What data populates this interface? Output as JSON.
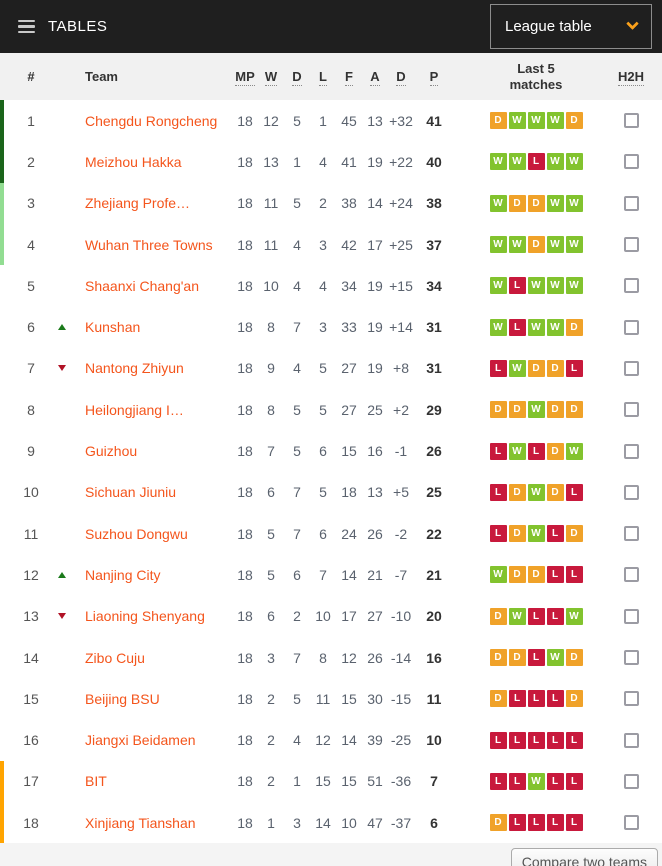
{
  "header": {
    "title": "TABLES",
    "dropdown_label": "League table"
  },
  "columns": {
    "rank": "#",
    "team": "Team",
    "mp": "MP",
    "w": "W",
    "d": "D",
    "l": "L",
    "f": "F",
    "a": "A",
    "diff": "D",
    "p": "P",
    "last5_line1": "Last 5",
    "last5_line2": "matches",
    "h2h": "H2H"
  },
  "footer": {
    "compare_label": "Compare two teams"
  },
  "colors": {
    "accent_orange": "#f4551c",
    "topbar_bg": "#1f1f1f",
    "chevron": "#f9a01b",
    "badge_win": "#82c32e",
    "badge_draw": "#f0a229",
    "badge_loss": "#c8193c",
    "zone_promotion": "#1b651b",
    "zone_promotion_playoff": "#92dd92",
    "zone_relegation": "#ffa400"
  },
  "rows": [
    {
      "rank": "1",
      "movement": "",
      "team": "Chengdu Rongcheng",
      "mp": "18",
      "w": "12",
      "d": "5",
      "l": "1",
      "f": "45",
      "a": "13",
      "diff": "+32",
      "p": "41",
      "last5": [
        "D",
        "W",
        "W",
        "W",
        "D"
      ],
      "zone": "promo-dark"
    },
    {
      "rank": "2",
      "movement": "",
      "team": "Meizhou Hakka",
      "mp": "18",
      "w": "13",
      "d": "1",
      "l": "4",
      "f": "41",
      "a": "19",
      "diff": "+22",
      "p": "40",
      "last5": [
        "W",
        "W",
        "L",
        "W",
        "W"
      ],
      "zone": "promo-dark"
    },
    {
      "rank": "3",
      "movement": "",
      "team": "Zhejiang Profe…",
      "mp": "18",
      "w": "11",
      "d": "5",
      "l": "2",
      "f": "38",
      "a": "14",
      "diff": "+24",
      "p": "38",
      "last5": [
        "W",
        "D",
        "D",
        "W",
        "W"
      ],
      "zone": "promo-light"
    },
    {
      "rank": "4",
      "movement": "",
      "team": "Wuhan Three Towns",
      "mp": "18",
      "w": "11",
      "d": "4",
      "l": "3",
      "f": "42",
      "a": "17",
      "diff": "+25",
      "p": "37",
      "last5": [
        "W",
        "W",
        "D",
        "W",
        "W"
      ],
      "zone": "promo-light"
    },
    {
      "rank": "5",
      "movement": "",
      "team": "Shaanxi Chang'an",
      "mp": "18",
      "w": "10",
      "d": "4",
      "l": "4",
      "f": "34",
      "a": "19",
      "diff": "+15",
      "p": "34",
      "last5": [
        "W",
        "L",
        "W",
        "W",
        "W"
      ],
      "zone": ""
    },
    {
      "rank": "6",
      "movement": "up",
      "team": "Kunshan",
      "mp": "18",
      "w": "8",
      "d": "7",
      "l": "3",
      "f": "33",
      "a": "19",
      "diff": "+14",
      "p": "31",
      "last5": [
        "W",
        "L",
        "W",
        "W",
        "D"
      ],
      "zone": ""
    },
    {
      "rank": "7",
      "movement": "down",
      "team": "Nantong Zhiyun",
      "mp": "18",
      "w": "9",
      "d": "4",
      "l": "5",
      "f": "27",
      "a": "19",
      "diff": "+8",
      "p": "31",
      "last5": [
        "L",
        "W",
        "D",
        "D",
        "L"
      ],
      "zone": ""
    },
    {
      "rank": "8",
      "movement": "",
      "team": "Heilongjiang I…",
      "mp": "18",
      "w": "8",
      "d": "5",
      "l": "5",
      "f": "27",
      "a": "25",
      "diff": "+2",
      "p": "29",
      "last5": [
        "D",
        "D",
        "W",
        "D",
        "D"
      ],
      "zone": ""
    },
    {
      "rank": "9",
      "movement": "",
      "team": "Guizhou",
      "mp": "18",
      "w": "7",
      "d": "5",
      "l": "6",
      "f": "15",
      "a": "16",
      "diff": "-1",
      "p": "26",
      "last5": [
        "L",
        "W",
        "L",
        "D",
        "W"
      ],
      "zone": ""
    },
    {
      "rank": "10",
      "movement": "",
      "team": "Sichuan Jiuniu",
      "mp": "18",
      "w": "6",
      "d": "7",
      "l": "5",
      "f": "18",
      "a": "13",
      "diff": "+5",
      "p": "25",
      "last5": [
        "L",
        "D",
        "W",
        "D",
        "L"
      ],
      "zone": ""
    },
    {
      "rank": "11",
      "movement": "",
      "team": "Suzhou Dongwu",
      "mp": "18",
      "w": "5",
      "d": "7",
      "l": "6",
      "f": "24",
      "a": "26",
      "diff": "-2",
      "p": "22",
      "last5": [
        "L",
        "D",
        "W",
        "L",
        "D"
      ],
      "zone": ""
    },
    {
      "rank": "12",
      "movement": "up",
      "team": "Nanjing City",
      "mp": "18",
      "w": "5",
      "d": "6",
      "l": "7",
      "f": "14",
      "a": "21",
      "diff": "-7",
      "p": "21",
      "last5": [
        "W",
        "D",
        "D",
        "L",
        "L"
      ],
      "zone": ""
    },
    {
      "rank": "13",
      "movement": "down",
      "team": "Liaoning Shenyang",
      "mp": "18",
      "w": "6",
      "d": "2",
      "l": "10",
      "f": "17",
      "a": "27",
      "diff": "-10",
      "p": "20",
      "last5": [
        "D",
        "W",
        "L",
        "L",
        "W"
      ],
      "zone": ""
    },
    {
      "rank": "14",
      "movement": "",
      "team": "Zibo Cuju",
      "mp": "18",
      "w": "3",
      "d": "7",
      "l": "8",
      "f": "12",
      "a": "26",
      "diff": "-14",
      "p": "16",
      "last5": [
        "D",
        "D",
        "L",
        "W",
        "D"
      ],
      "zone": ""
    },
    {
      "rank": "15",
      "movement": "",
      "team": "Beijing BSU",
      "mp": "18",
      "w": "2",
      "d": "5",
      "l": "11",
      "f": "15",
      "a": "30",
      "diff": "-15",
      "p": "11",
      "last5": [
        "D",
        "L",
        "L",
        "L",
        "D"
      ],
      "zone": ""
    },
    {
      "rank": "16",
      "movement": "",
      "team": "Jiangxi Beidamen",
      "mp": "18",
      "w": "2",
      "d": "4",
      "l": "12",
      "f": "14",
      "a": "39",
      "diff": "-25",
      "p": "10",
      "last5": [
        "L",
        "L",
        "L",
        "L",
        "L"
      ],
      "zone": ""
    },
    {
      "rank": "17",
      "movement": "",
      "team": "BIT",
      "mp": "18",
      "w": "2",
      "d": "1",
      "l": "15",
      "f": "15",
      "a": "51",
      "diff": "-36",
      "p": "7",
      "last5": [
        "L",
        "L",
        "W",
        "L",
        "L"
      ],
      "zone": "releg"
    },
    {
      "rank": "18",
      "movement": "",
      "team": "Xinjiang Tianshan",
      "mp": "18",
      "w": "1",
      "d": "3",
      "l": "14",
      "f": "10",
      "a": "47",
      "diff": "-37",
      "p": "6",
      "last5": [
        "D",
        "L",
        "L",
        "L",
        "L"
      ],
      "zone": "releg"
    }
  ]
}
